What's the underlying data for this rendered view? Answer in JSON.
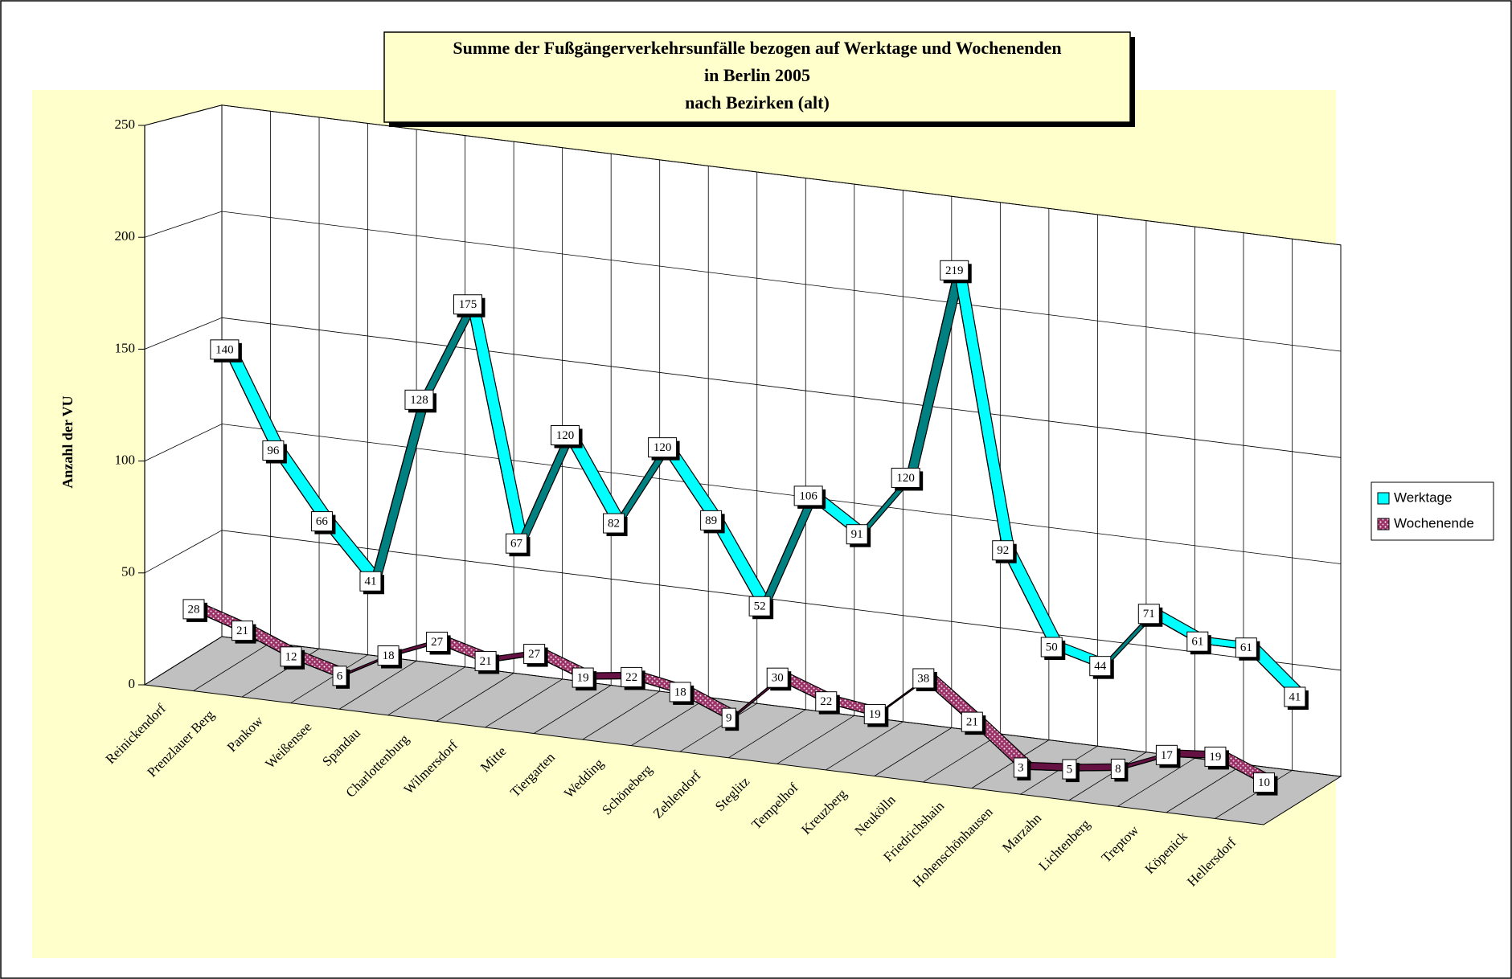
{
  "chart_data": {
    "type": "line3d",
    "title": [
      "Summe der Fußgängerverkehrsunfälle bezogen auf Werktage und Wochenenden",
      "in Berlin  2005",
      "nach Bezirken (alt)"
    ],
    "y_label": "Anzahl der VU",
    "categories": [
      "Reinickendorf",
      "Prenzlauer Berg",
      "Pankow",
      "Weißensee",
      "Spandau",
      "Charlottenburg",
      "Wilmersdorf",
      "Mitte",
      "Tiergarten",
      "Wedding",
      "Schöneberg",
      "Zehlendorf",
      "Steglitz",
      "Tempelhof",
      "Kreuzberg",
      "Neukölln",
      "Friedrichshain",
      "Hohenschönhausen",
      "Marzahn",
      "Lichtenberg",
      "Treptow",
      "Köpenick",
      "Hellersdorf"
    ],
    "series": [
      {
        "name": "Werktage",
        "color": "#00ffff",
        "values": [
          140,
          96,
          66,
          41,
          128,
          175,
          67,
          120,
          82,
          120,
          89,
          52,
          106,
          91,
          120,
          219,
          92,
          50,
          44,
          71,
          61,
          61,
          41
        ]
      },
      {
        "name": "Wochenende",
        "color": "#993366",
        "values": [
          28,
          21,
          12,
          6,
          18,
          27,
          21,
          27,
          19,
          22,
          18,
          9,
          30,
          22,
          19,
          38,
          21,
          3,
          5,
          8,
          17,
          19,
          10
        ]
      }
    ],
    "ylim": [
      0,
      250
    ],
    "yticks": [
      0,
      50,
      100,
      150,
      200,
      250
    ],
    "grid": true,
    "legend": "right"
  }
}
